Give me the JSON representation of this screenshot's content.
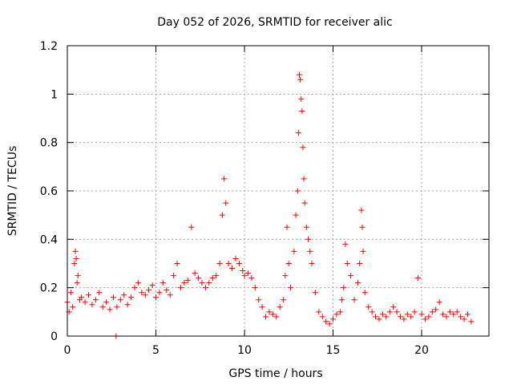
{
  "chart_data": {
    "type": "scatter",
    "title": "Day 052 of 2026, SRMTID for receiver alic",
    "xlabel": "GPS time / hours",
    "ylabel": "SRMTID / TECUs",
    "xlim": [
      0,
      23.8
    ],
    "ylim": [
      0,
      1.2
    ],
    "x_ticks": [
      0,
      5,
      10,
      15,
      20
    ],
    "x_tick_labels": [
      "0",
      "5",
      "10",
      "15",
      "20"
    ],
    "y_ticks": [
      0,
      0.2,
      0.4,
      0.6,
      0.8,
      1.0,
      1.2
    ],
    "y_tick_labels": [
      "0",
      "0.2",
      "0.4",
      "0.6",
      "0.8",
      "1",
      "1.2"
    ],
    "grid": true,
    "marker": "+",
    "series": [
      {
        "name": "SRMTID",
        "color": "#ff0000",
        "x": [
          0.0,
          0.1,
          0.2,
          0.3,
          0.4,
          0.45,
          0.5,
          0.55,
          0.6,
          0.7,
          0.8,
          1.0,
          1.2,
          1.4,
          1.6,
          1.8,
          2.0,
          2.2,
          2.4,
          2.6,
          2.75,
          2.8,
          3.0,
          3.2,
          3.4,
          3.6,
          3.8,
          4.0,
          4.2,
          4.4,
          4.6,
          4.8,
          5.0,
          5.2,
          5.4,
          5.6,
          5.8,
          6.0,
          6.2,
          6.4,
          6.6,
          6.8,
          7.0,
          7.2,
          7.4,
          7.6,
          7.8,
          8.0,
          8.2,
          8.4,
          8.6,
          8.75,
          8.85,
          8.95,
          9.1,
          9.3,
          9.5,
          9.7,
          9.9,
          10.0,
          10.2,
          10.4,
          10.6,
          10.8,
          11.0,
          11.2,
          11.4,
          11.6,
          11.8,
          12.0,
          12.2,
          12.3,
          12.4,
          12.5,
          12.6,
          12.8,
          12.9,
          13.0,
          13.05,
          13.1,
          13.15,
          13.2,
          13.25,
          13.3,
          13.35,
          13.4,
          13.5,
          13.6,
          13.7,
          13.8,
          14.0,
          14.2,
          14.4,
          14.6,
          14.8,
          15.0,
          15.2,
          15.4,
          15.5,
          15.6,
          15.7,
          15.8,
          16.0,
          16.2,
          16.4,
          16.5,
          16.6,
          16.65,
          16.7,
          16.8,
          17.0,
          17.2,
          17.4,
          17.6,
          17.8,
          18.0,
          18.2,
          18.4,
          18.6,
          18.8,
          19.0,
          19.2,
          19.4,
          19.6,
          19.8,
          20.0,
          20.2,
          20.4,
          20.6,
          20.8,
          21.0,
          21.2,
          21.4,
          21.6,
          21.8,
          22.0,
          22.2,
          22.4,
          22.6,
          22.8
        ],
        "y": [
          0.14,
          0.1,
          0.18,
          0.12,
          0.3,
          0.35,
          0.32,
          0.22,
          0.25,
          0.15,
          0.16,
          0.14,
          0.17,
          0.13,
          0.15,
          0.18,
          0.12,
          0.14,
          0.11,
          0.16,
          0.0,
          0.12,
          0.15,
          0.17,
          0.13,
          0.16,
          0.2,
          0.22,
          0.18,
          0.17,
          0.19,
          0.21,
          0.16,
          0.18,
          0.22,
          0.19,
          0.17,
          0.25,
          0.3,
          0.2,
          0.22,
          0.23,
          0.45,
          0.26,
          0.24,
          0.22,
          0.2,
          0.22,
          0.24,
          0.25,
          0.3,
          0.5,
          0.65,
          0.55,
          0.3,
          0.28,
          0.32,
          0.3,
          0.27,
          0.25,
          0.26,
          0.24,
          0.2,
          0.15,
          0.12,
          0.08,
          0.1,
          0.09,
          0.08,
          0.12,
          0.15,
          0.25,
          0.45,
          0.3,
          0.2,
          0.35,
          0.5,
          0.6,
          0.84,
          1.08,
          1.06,
          0.98,
          0.93,
          0.78,
          0.65,
          0.55,
          0.45,
          0.4,
          0.35,
          0.3,
          0.18,
          0.1,
          0.08,
          0.06,
          0.05,
          0.07,
          0.09,
          0.1,
          0.15,
          0.2,
          0.38,
          0.3,
          0.25,
          0.15,
          0.22,
          0.3,
          0.52,
          0.45,
          0.35,
          0.18,
          0.12,
          0.1,
          0.08,
          0.07,
          0.09,
          0.08,
          0.1,
          0.12,
          0.1,
          0.08,
          0.07,
          0.09,
          0.08,
          0.1,
          0.24,
          0.09,
          0.07,
          0.08,
          0.1,
          0.11,
          0.14,
          0.09,
          0.08,
          0.1,
          0.09,
          0.1,
          0.08,
          0.07,
          0.09,
          0.06
        ]
      }
    ]
  }
}
